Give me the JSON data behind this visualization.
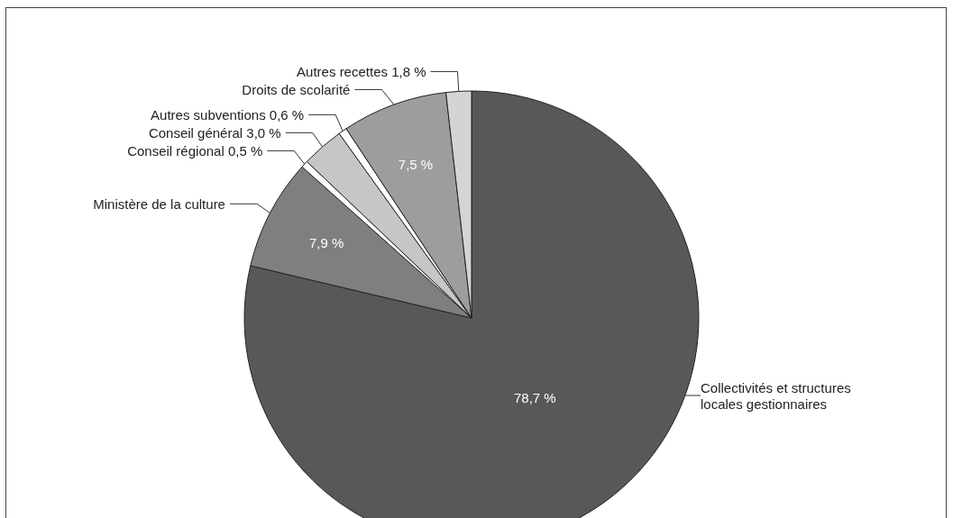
{
  "chart_data": {
    "type": "pie",
    "categories": [
      "Collectivités et structures locales gestionnaires",
      "Ministère de la culture",
      "Conseil régional",
      "Conseil général",
      "Autres subventions",
      "Droits de scolarité",
      "Autres recettes"
    ],
    "values": [
      78.7,
      7.9,
      0.5,
      3.0,
      0.6,
      7.5,
      1.8
    ],
    "value_labels": [
      "78,7 %",
      "7,9 %",
      "0,5 %",
      "3,0 %",
      "0,6 %",
      "7,5 %",
      "1,8 %"
    ],
    "colors": [
      "#58585a",
      "#7f7f7f",
      "#ffffff",
      "#c6c6c6",
      "#ffffff",
      "#9d9d9d",
      "#d4d4d4"
    ],
    "legend": false
  }
}
